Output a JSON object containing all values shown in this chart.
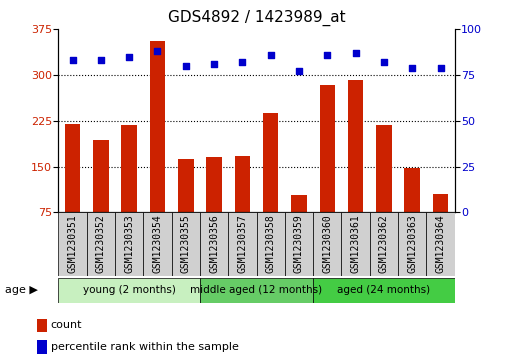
{
  "title": "GDS4892 / 1423989_at",
  "samples": [
    "GSM1230351",
    "GSM1230352",
    "GSM1230353",
    "GSM1230354",
    "GSM1230355",
    "GSM1230356",
    "GSM1230357",
    "GSM1230358",
    "GSM1230359",
    "GSM1230360",
    "GSM1230361",
    "GSM1230362",
    "GSM1230363",
    "GSM1230364"
  ],
  "counts": [
    220,
    193,
    218,
    355,
    163,
    165,
    168,
    238,
    103,
    283,
    292,
    218,
    148,
    105
  ],
  "percentile_ranks": [
    83,
    83,
    85,
    88,
    80,
    81,
    82,
    86,
    77,
    86,
    87,
    82,
    79,
    79
  ],
  "ylim_left": [
    75,
    375
  ],
  "ylim_right": [
    0,
    100
  ],
  "yticks_left": [
    75,
    150,
    225,
    300,
    375
  ],
  "yticks_right": [
    0,
    25,
    50,
    75,
    100
  ],
  "bar_color": "#cc2200",
  "dot_color": "#0000cc",
  "grid_color": "#000000",
  "groups": [
    {
      "label": "young (2 months)",
      "start": 0,
      "end": 5,
      "color": "#c8f0c0"
    },
    {
      "label": "middle aged (12 months)",
      "start": 5,
      "end": 9,
      "color": "#66cc66"
    },
    {
      "label": "aged (24 months)",
      "start": 9,
      "end": 14,
      "color": "#44cc44"
    }
  ],
  "age_label": "age",
  "legend_count_label": "count",
  "legend_percentile_label": "percentile rank within the sample",
  "title_fontsize": 11,
  "tick_fontsize": 7,
  "label_fontsize": 8,
  "sample_box_color": "#d0d0d0"
}
